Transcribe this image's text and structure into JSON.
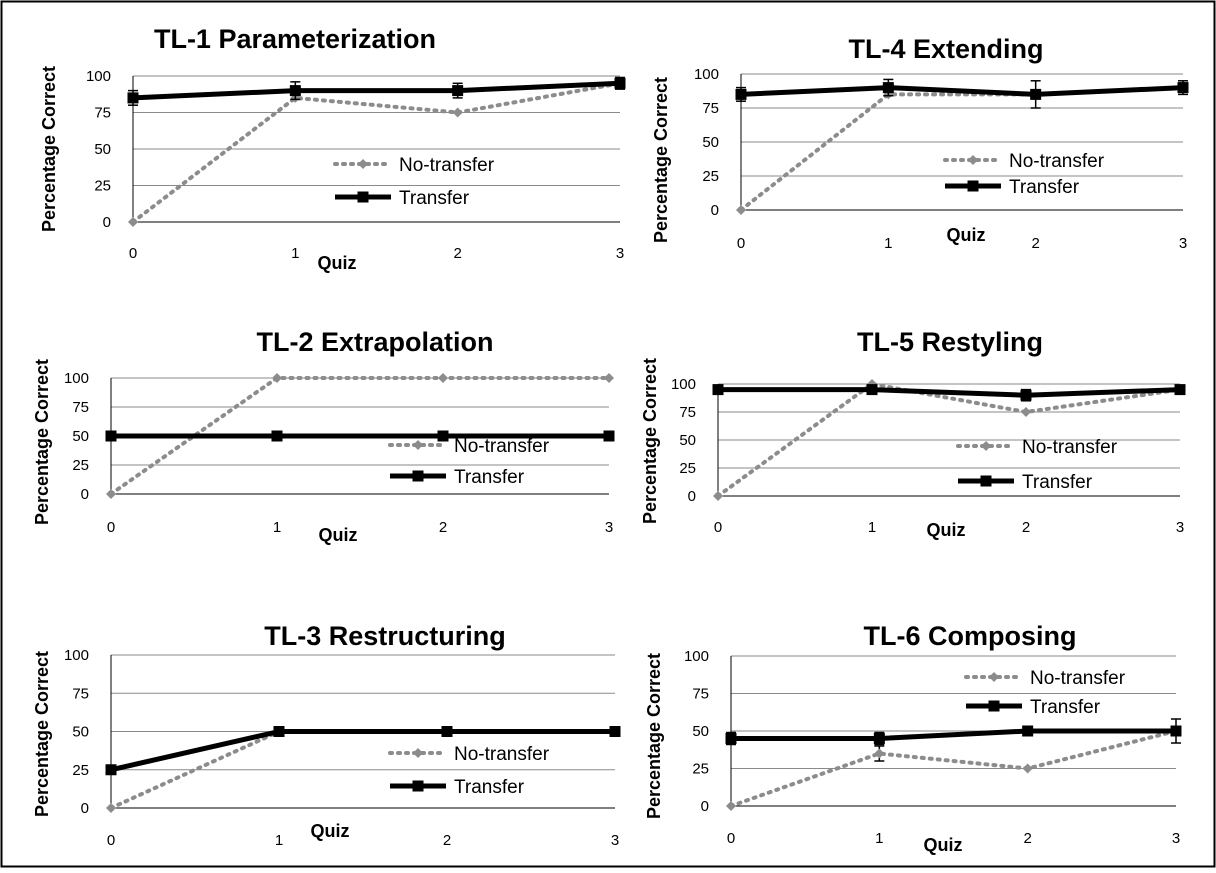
{
  "colors": {
    "no_transfer": "#8c8c8c",
    "transfer": "#000000",
    "grid": "#8a8a8a",
    "frame": "#000000"
  },
  "chart_data": [
    {
      "type": "line",
      "title": "TL-1 Parameterization",
      "xlabel": "Quiz",
      "ylabel": "Percentage Correct",
      "x": [
        0,
        1,
        2,
        3
      ],
      "xticks": [
        "0",
        "1",
        "2",
        "3"
      ],
      "yticks": [
        "0",
        "25",
        "50",
        "75",
        "100"
      ],
      "ylim": [
        0,
        100
      ],
      "grid": true,
      "legend": "center-right",
      "series": [
        {
          "name": "No-transfer",
          "values": [
            0,
            85,
            75,
            95
          ],
          "errors": [
            0,
            0,
            0,
            0
          ]
        },
        {
          "name": "Transfer",
          "values": [
            85,
            90,
            90,
            95
          ],
          "errors": [
            5,
            6,
            5,
            4
          ]
        }
      ]
    },
    {
      "type": "line",
      "title": "TL-4 Extending",
      "xlabel": "Quiz",
      "ylabel": "Percentage Correct",
      "x": [
        0,
        1,
        2,
        3
      ],
      "xticks": [
        "0",
        "1",
        "2",
        "3"
      ],
      "yticks": [
        "0",
        "25",
        "50",
        "75",
        "100"
      ],
      "ylim": [
        0,
        100
      ],
      "grid": true,
      "legend": "center-right",
      "series": [
        {
          "name": "No-transfer",
          "values": [
            0,
            85,
            85,
            90
          ],
          "errors": [
            0,
            0,
            0,
            0
          ]
        },
        {
          "name": "Transfer",
          "values": [
            85,
            90,
            85,
            90
          ],
          "errors": [
            5,
            6,
            10,
            5
          ]
        }
      ]
    },
    {
      "type": "line",
      "title": "TL-2 Extrapolation",
      "xlabel": "Quiz",
      "ylabel": "Percentage Correct",
      "x": [
        0,
        1,
        2,
        3
      ],
      "xticks": [
        "0",
        "1",
        "2",
        "3"
      ],
      "yticks": [
        "0",
        "25",
        "50",
        "75",
        "100"
      ],
      "ylim": [
        0,
        100
      ],
      "grid": true,
      "legend": "center-right",
      "series": [
        {
          "name": "No-transfer",
          "values": [
            0,
            100,
            100,
            100
          ],
          "errors": [
            0,
            0,
            0,
            0
          ]
        },
        {
          "name": "Transfer",
          "values": [
            50,
            50,
            50,
            50
          ],
          "errors": [
            0,
            0,
            0,
            0
          ]
        }
      ]
    },
    {
      "type": "line",
      "title": "TL-5 Restyling",
      "xlabel": "Quiz",
      "ylabel": "Percentage Correct",
      "x": [
        0,
        1,
        2,
        3
      ],
      "xticks": [
        "0",
        "1",
        "2",
        "3"
      ],
      "yticks": [
        "0",
        "25",
        "50",
        "75",
        "100"
      ],
      "ylim": [
        0,
        100
      ],
      "grid": true,
      "legend": "center-right",
      "series": [
        {
          "name": "No-transfer",
          "values": [
            0,
            100,
            75,
            95
          ],
          "errors": [
            0,
            0,
            0,
            0
          ]
        },
        {
          "name": "Transfer",
          "values": [
            95,
            95,
            90,
            95
          ],
          "errors": [
            0,
            0,
            5,
            0
          ]
        }
      ]
    },
    {
      "type": "line",
      "title": "TL-3 Restructuring",
      "xlabel": "Quiz",
      "ylabel": "Percentage Correct",
      "x": [
        0,
        1,
        2,
        3
      ],
      "xticks": [
        "0",
        "1",
        "2",
        "3"
      ],
      "yticks": [
        "0",
        "25",
        "50",
        "75",
        "100"
      ],
      "ylim": [
        0,
        100
      ],
      "grid": true,
      "legend": "center-right",
      "series": [
        {
          "name": "No-transfer",
          "values": [
            0,
            50,
            50,
            50
          ],
          "errors": [
            0,
            0,
            0,
            0
          ]
        },
        {
          "name": "Transfer",
          "values": [
            25,
            50,
            50,
            50
          ],
          "errors": [
            0,
            0,
            0,
            0
          ]
        }
      ]
    },
    {
      "type": "line",
      "title": "TL-6 Composing",
      "xlabel": "Quiz",
      "ylabel": "Percentage Correct",
      "x": [
        0,
        1,
        2,
        3
      ],
      "xticks": [
        "0",
        "1",
        "2",
        "3"
      ],
      "yticks": [
        "0",
        "25",
        "50",
        "75",
        "100"
      ],
      "ylim": [
        0,
        100
      ],
      "grid": true,
      "legend": "top-right",
      "series": [
        {
          "name": "No-transfer",
          "values": [
            0,
            35,
            25,
            50
          ],
          "errors": [
            0,
            5,
            0,
            0
          ]
        },
        {
          "name": "Transfer",
          "values": [
            45,
            45,
            50,
            50
          ],
          "errors": [
            4,
            4,
            0,
            8
          ]
        }
      ]
    }
  ]
}
